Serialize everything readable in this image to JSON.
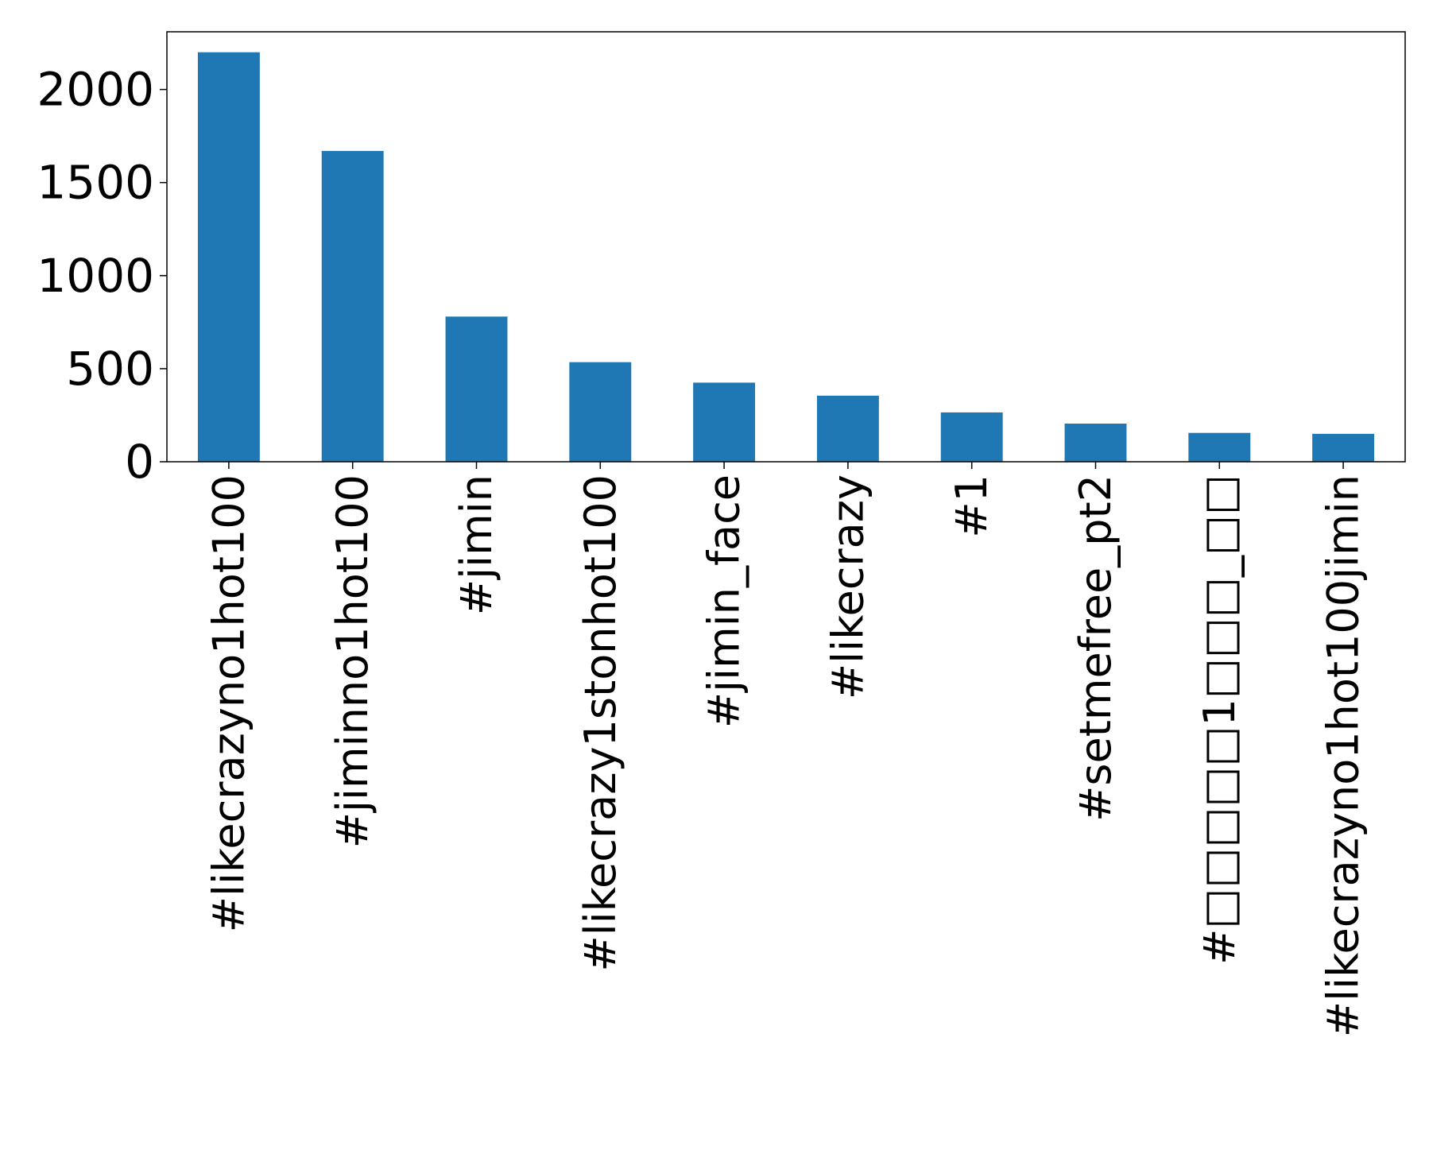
{
  "chart_data": {
    "type": "bar",
    "categories": [
      "#likecrazyno1hot100",
      "#jiminno1hot100",
      "#jimin",
      "#likecrazy1stonhot100",
      "#jimin_face",
      "#likecrazy",
      "#1",
      "#setmefree_pt2",
      "#□□□□□1□□□_□□",
      "#likecrazyno1hot100jimin"
    ],
    "values": [
      2200,
      1670,
      780,
      535,
      425,
      355,
      265,
      205,
      155,
      150
    ],
    "yticks": [
      0,
      500,
      1000,
      1500,
      2000
    ],
    "ylim": [
      0,
      2310
    ],
    "title": "",
    "xlabel": "",
    "ylabel": "",
    "grid": false,
    "legend": "none",
    "bar_color": "#1f77b4"
  }
}
